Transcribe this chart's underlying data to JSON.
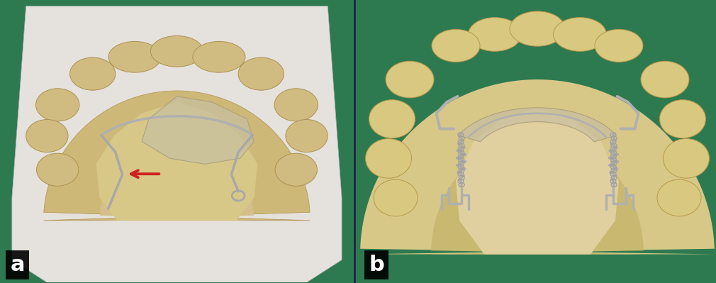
{
  "panel_a_label": "a",
  "panel_b_label": "b",
  "label_fontsize": 22,
  "label_color": "white",
  "label_bg_color": "black",
  "bg_green": "#2e7a50",
  "white_base_color": "#e8e5e0",
  "dental_tan": "#d4b97a",
  "dental_tan_dark": "#c0a060",
  "dental_pale": "#e8d8a0",
  "palate_color": "#c8a84a",
  "acrylic_color": "#d0c8a0",
  "wire_color": "#a0a0a0",
  "wire_dark": "#808080",
  "arrow_red": "#cc2222",
  "border_line": "#3333aa",
  "divider_line": "#1a1a2a",
  "fig_width": 10.1,
  "fig_height": 3.99,
  "dpi": 100
}
